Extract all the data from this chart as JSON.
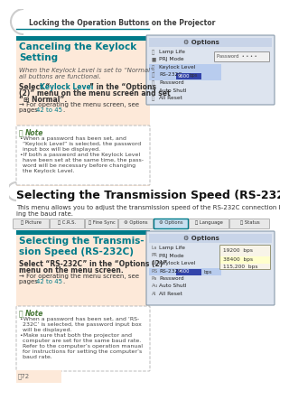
{
  "bg_color": "#ffffff",
  "header_text": "Locking the Operation Buttons on the Projector",
  "header_color": "#3d3d3d",
  "teal_color": "#007b8a",
  "teal_bar_color": "#007b8a",
  "section_bg": "#fde9d9",
  "note_border": "#bbbbbb",
  "note_title_color": "#4a7a3a",
  "sec1_title": "Canceling the Keylock\nSetting",
  "sec1_italic": "When the Keylock Level is set to “Normal”,\nall buttons are functional.",
  "sec2_big_title": "Selecting the Transmission Speed (RS-232C)",
  "sec2_body": "This menu allows you to adjust the transmission speed of the RS-232C connection by select-\ning the baud rate.",
  "sec3_title": "Selecting the Transmis-\nsion Speed (RS-232C)",
  "footer": "Ⓜ72"
}
